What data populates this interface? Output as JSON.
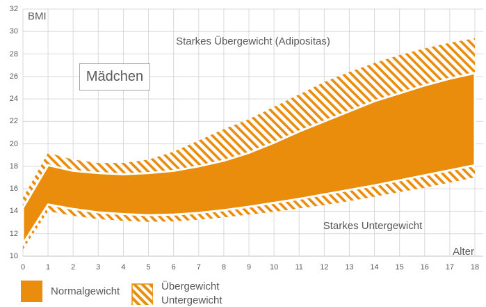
{
  "labels": {
    "y_axis": "BMI",
    "x_axis": "Alter",
    "group": "Mädchen",
    "upper_region": "Starkes Übergewicht (Adipositas)",
    "lower_region": "Starkes Untergewicht"
  },
  "legend": {
    "normal": "Normalgewicht",
    "over": "Übergewicht",
    "under": "Untergewicht"
  },
  "colors": {
    "orange": "#ea8c0c",
    "grid": "#d9d9d9",
    "axis": "#c0c0c0",
    "text": "#595959",
    "box_border": "#a6a6a6"
  },
  "chart_data": {
    "type": "area",
    "xlabel": "Alter",
    "ylabel": "BMI",
    "xlim": [
      0,
      18
    ],
    "ylim": [
      10,
      32
    ],
    "grid": true,
    "x_ticks": [
      0,
      1,
      2,
      3,
      4,
      5,
      6,
      7,
      8,
      9,
      10,
      11,
      12,
      13,
      14,
      15,
      16,
      17,
      18
    ],
    "y_ticks": [
      10,
      12,
      14,
      16,
      18,
      20,
      22,
      24,
      26,
      28,
      30,
      32
    ],
    "x": [
      0,
      1,
      2,
      3,
      4,
      5,
      6,
      7,
      8,
      9,
      10,
      11,
      12,
      13,
      14,
      15,
      16,
      17,
      18
    ],
    "series": [
      {
        "name": "underweight_band_bottom",
        "values": [
          10.6,
          14.0,
          13.6,
          13.3,
          13.15,
          13.05,
          13.1,
          13.25,
          13.45,
          13.7,
          13.95,
          14.25,
          14.55,
          14.9,
          15.3,
          15.7,
          16.1,
          16.55,
          17.0
        ]
      },
      {
        "name": "normal_band_bottom",
        "values": [
          11.1,
          14.6,
          14.2,
          13.9,
          13.75,
          13.65,
          13.7,
          13.85,
          14.1,
          14.4,
          14.75,
          15.1,
          15.5,
          15.9,
          16.3,
          16.75,
          17.2,
          17.65,
          18.1
        ]
      },
      {
        "name": "normal_band_top",
        "values": [
          14.3,
          18.1,
          17.6,
          17.4,
          17.3,
          17.4,
          17.6,
          18.0,
          18.5,
          19.2,
          20.1,
          21.1,
          22.0,
          22.9,
          23.8,
          24.5,
          25.2,
          25.8,
          26.3
        ]
      },
      {
        "name": "overweight_band_top",
        "values": [
          15.2,
          19.2,
          18.6,
          18.3,
          18.3,
          18.6,
          19.3,
          20.3,
          21.3,
          22.2,
          23.3,
          24.4,
          25.5,
          26.4,
          27.2,
          27.9,
          28.5,
          29.0,
          29.4
        ]
      }
    ],
    "bands": [
      {
        "label": "Untergewicht",
        "from": "underweight_band_bottom",
        "to": "normal_band_bottom",
        "style": "hatched"
      },
      {
        "label": "Normalgewicht",
        "from": "normal_band_bottom",
        "to": "normal_band_top",
        "style": "solid"
      },
      {
        "label": "Übergewicht",
        "from": "normal_band_top",
        "to": "overweight_band_top",
        "style": "hatched"
      }
    ],
    "annotations": [
      "Mädchen",
      "Starkes Übergewicht (Adipositas)",
      "Starkes Untergewicht"
    ]
  }
}
